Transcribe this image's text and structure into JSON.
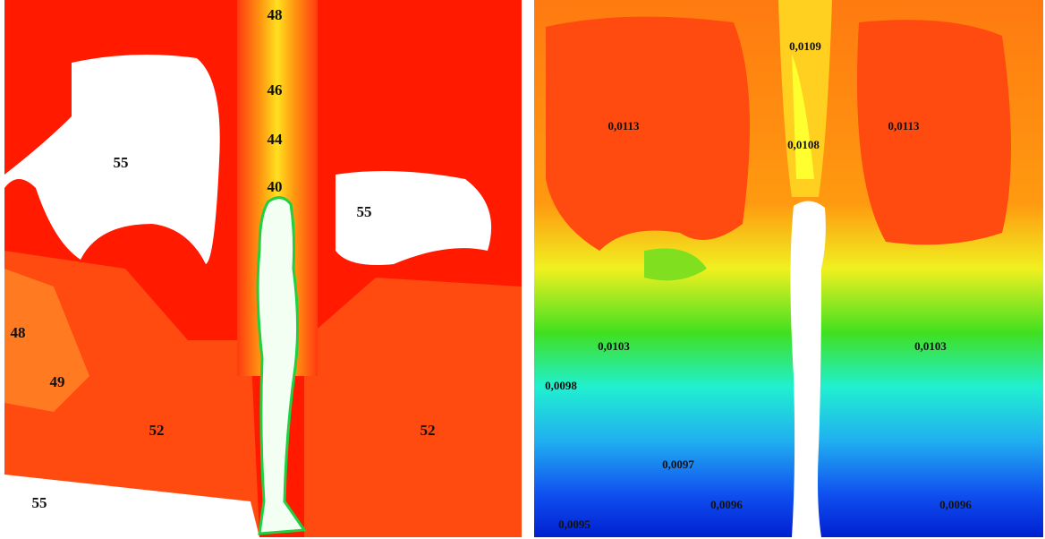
{
  "panels": [
    {
      "labels": [
        "48",
        "46",
        "44",
        "40",
        "55",
        "55",
        "48",
        "49",
        "52",
        "52",
        "55"
      ]
    },
    {
      "labels": [
        "0,0109",
        "0,0113",
        "0,0113",
        "0,0108",
        "0,0103",
        "0,0103",
        "0,0098",
        "0,0097",
        "0,0096",
        "0,0096",
        "0,0095"
      ]
    }
  ]
}
